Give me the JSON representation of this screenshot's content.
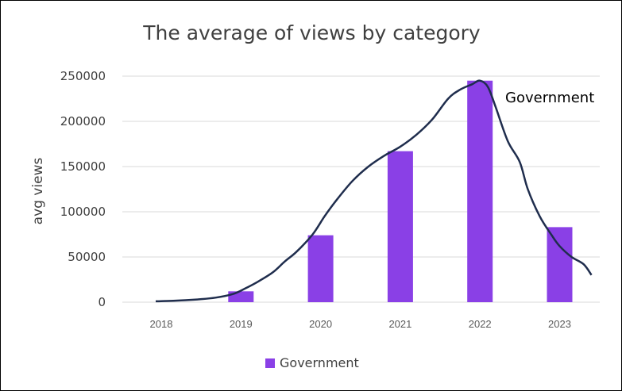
{
  "chart_data": {
    "type": "bar",
    "title": "The average of views by category",
    "xlabel": "",
    "ylabel": "avg views",
    "categories": [
      "2018",
      "2019",
      "2020",
      "2021",
      "2022",
      "2023"
    ],
    "series": [
      {
        "name": "Government",
        "values": [
          0,
          12000,
          74000,
          167000,
          245000,
          83000
        ]
      }
    ],
    "trend_line": {
      "x": [
        2017.93,
        2018.15,
        2018.45,
        2018.68,
        2018.9,
        2019.05,
        2019.2,
        2019.4,
        2019.55,
        2019.7,
        2019.9,
        2020.05,
        2020.2,
        2020.4,
        2020.6,
        2020.8,
        2021.0,
        2021.2,
        2021.4,
        2021.6,
        2021.75,
        2021.9,
        2022.0,
        2022.1,
        2022.2,
        2022.35,
        2022.5,
        2022.6,
        2022.75,
        2022.9,
        2023.0,
        2023.15,
        2023.3,
        2023.4
      ],
      "y": [
        1000,
        1500,
        3000,
        5000,
        9000,
        15000,
        22000,
        33000,
        45000,
        56000,
        75000,
        95000,
        113000,
        134000,
        150000,
        162000,
        172000,
        185000,
        202000,
        225000,
        235000,
        241000,
        245000,
        238000,
        215000,
        178000,
        155000,
        125000,
        95000,
        74000,
        62000,
        50000,
        42000,
        30000
      ]
    },
    "annotation": "Government",
    "ylim": [
      0,
      250000
    ],
    "yticks": [
      "0",
      "50000",
      "100000",
      "150000",
      "200000",
      "250000"
    ],
    "grid": true,
    "legend": "bottom-center",
    "colors": {
      "bar": "#8a40e6",
      "line": "#1f2d4d",
      "grid": "#d9d9d9"
    }
  }
}
